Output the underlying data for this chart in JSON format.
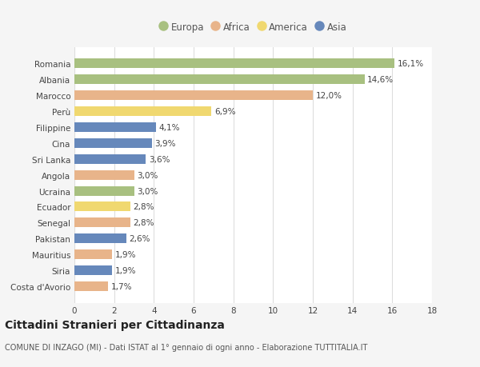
{
  "categories": [
    "Romania",
    "Albania",
    "Marocco",
    "Perù",
    "Filippine",
    "Cina",
    "Sri Lanka",
    "Angola",
    "Ucraina",
    "Ecuador",
    "Senegal",
    "Pakistan",
    "Mauritius",
    "Siria",
    "Costa d'Avorio"
  ],
  "values": [
    16.1,
    14.6,
    12.0,
    6.9,
    4.1,
    3.9,
    3.6,
    3.0,
    3.0,
    2.8,
    2.8,
    2.6,
    1.9,
    1.9,
    1.7
  ],
  "labels": [
    "16,1%",
    "14,6%",
    "12,0%",
    "6,9%",
    "4,1%",
    "3,9%",
    "3,6%",
    "3,0%",
    "3,0%",
    "2,8%",
    "2,8%",
    "2,6%",
    "1,9%",
    "1,9%",
    "1,7%"
  ],
  "continents": [
    "Europa",
    "Europa",
    "Africa",
    "America",
    "Asia",
    "Asia",
    "Asia",
    "Africa",
    "Europa",
    "America",
    "Africa",
    "Asia",
    "Africa",
    "Asia",
    "Africa"
  ],
  "continent_colors": {
    "Europa": "#a8c080",
    "Africa": "#e8b48a",
    "America": "#f0d870",
    "Asia": "#6688bb"
  },
  "legend_order": [
    "Europa",
    "Africa",
    "America",
    "Asia"
  ],
  "bg_color": "#f5f5f5",
  "plot_bg_color": "#ffffff",
  "grid_color": "#dddddd",
  "title1": "Cittadini Stranieri per Cittadinanza",
  "title2": "COMUNE DI INZAGO (MI) - Dati ISTAT al 1° gennaio di ogni anno - Elaborazione TUTTITALIA.IT",
  "xlim": [
    0,
    18
  ],
  "xticks": [
    0,
    2,
    4,
    6,
    8,
    10,
    12,
    14,
    16,
    18
  ],
  "bar_height": 0.6,
  "label_fontsize": 7.5,
  "tick_fontsize": 7.5,
  "title1_fontsize": 10,
  "title2_fontsize": 7
}
